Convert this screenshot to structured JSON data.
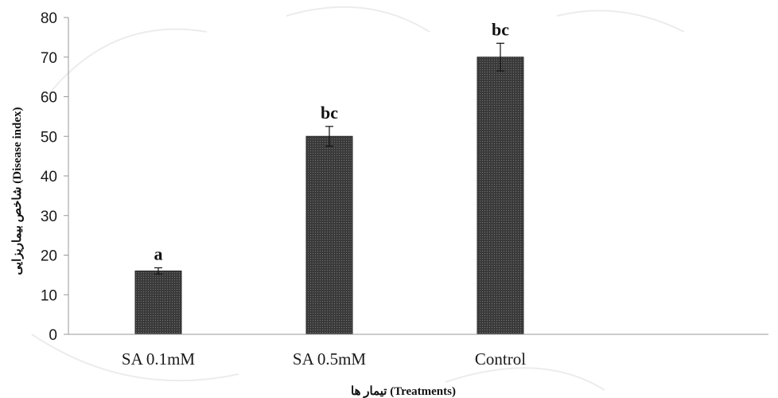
{
  "chart_data": {
    "type": "bar",
    "title": "",
    "xlabel": "تیمار ها (Treatments)",
    "ylabel": "شاخص بیماریزایی (Disease index)",
    "categories": [
      "SA 0.1mM",
      "SA 0.5mM",
      "Control"
    ],
    "values": [
      16,
      50,
      70
    ],
    "errors": [
      0.8,
      2.5,
      3.5
    ],
    "significance_labels": [
      "a",
      "bc",
      "bc"
    ],
    "ylim": [
      0,
      80
    ],
    "yticks": [
      0,
      10,
      20,
      30,
      40,
      50,
      60,
      70,
      80
    ],
    "grid": false,
    "legend": "none",
    "bar_color": "#3a3a3a"
  }
}
